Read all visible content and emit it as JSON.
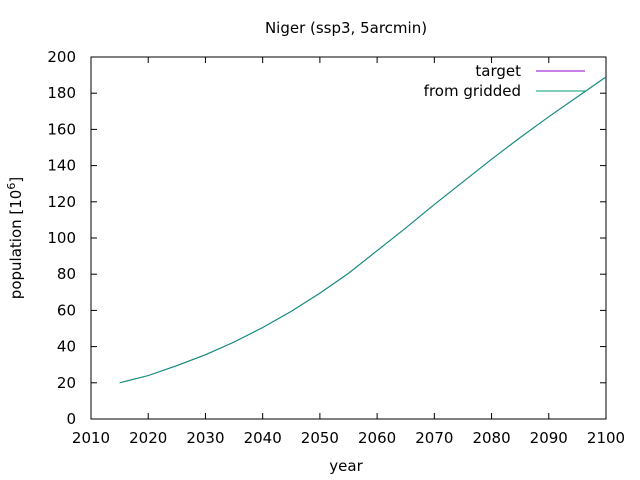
{
  "chart_data": {
    "type": "line",
    "title": "Niger (ssp3, 5arcmin)",
    "xlabel": "year",
    "ylabel_main": "population [10",
    "ylabel_sup": "6",
    "ylabel_close": "]",
    "xlim": [
      2010,
      2100
    ],
    "ylim": [
      0,
      200
    ],
    "xticks": [
      2010,
      2020,
      2030,
      2040,
      2050,
      2060,
      2070,
      2080,
      2090,
      2100
    ],
    "yticks": [
      0,
      20,
      40,
      60,
      80,
      100,
      120,
      140,
      160,
      180,
      200
    ],
    "grid": false,
    "legend_position": "top-right",
    "x": [
      2015,
      2020,
      2025,
      2030,
      2035,
      2040,
      2045,
      2050,
      2055,
      2060,
      2065,
      2070,
      2075,
      2080,
      2085,
      2090,
      2095,
      2100
    ],
    "series": [
      {
        "name": "target",
        "color": "#9400d3",
        "values": [
          20,
          24,
          29.5,
          35.5,
          42.5,
          50.5,
          59.5,
          69.5,
          80.5,
          93,
          105.5,
          118.5,
          131,
          143.5,
          155.5,
          167,
          178,
          189
        ]
      },
      {
        "name": "from gridded",
        "color": "#009e73",
        "values": [
          20,
          24,
          29.5,
          35.5,
          42.5,
          50.5,
          59.5,
          69.5,
          80.5,
          93,
          105.5,
          118.5,
          131,
          143.5,
          155.5,
          167,
          178,
          189
        ]
      }
    ]
  }
}
